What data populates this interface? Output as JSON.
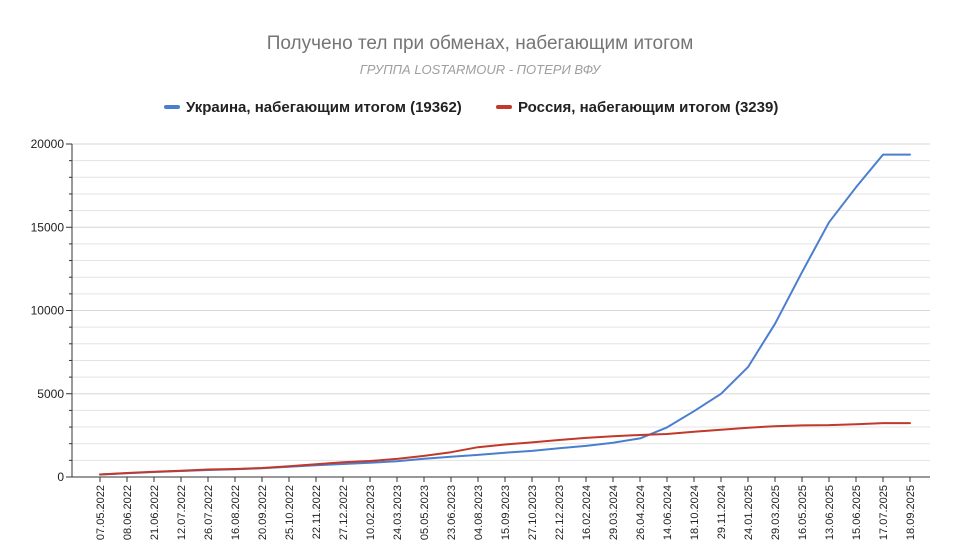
{
  "chart_data": {
    "type": "line",
    "title": "Получено тел при обменах, набегающим итогом",
    "subtitle": "ГРУППА LOSTARMOUR - ПОТЕРИ ВФУ",
    "xlabel": "",
    "ylabel": "",
    "ylim": [
      0,
      20000
    ],
    "yticks": [
      0,
      5000,
      10000,
      15000,
      20000
    ],
    "grid": true,
    "legend_position": "top-center",
    "categories": [
      "07.05.2022",
      "08.06.2022",
      "21.06.2022",
      "12.07.2022",
      "26.07.2022",
      "16.08.2022",
      "20.09.2022",
      "25.10.2022",
      "22.11.2022",
      "27.12.2022",
      "10.02.2023",
      "24.03.2023",
      "05.05.2023",
      "23.06.2023",
      "04.08.2023",
      "15.09.2023",
      "27.10.2023",
      "22.12.2023",
      "16.02.2024",
      "29.03.2024",
      "26.04.2024",
      "14.06.2024",
      "18.10.2024",
      "29.11.2024",
      "24.01.2025",
      "29.03.2025",
      "16.05.2025",
      "13.06.2025",
      "15.06.2025",
      "17.07.2025",
      "18.09.2025"
    ],
    "series": [
      {
        "name": "Украина, набегающим итогом (19362)",
        "color": "#4a7fd0",
        "values": [
          150,
          220,
          300,
          360,
          420,
          460,
          520,
          620,
          700,
          780,
          850,
          950,
          1100,
          1220,
          1330,
          1460,
          1570,
          1730,
          1870,
          2060,
          2320,
          2980,
          3950,
          5000,
          6600,
          9200,
          12300,
          15300,
          17400,
          19362,
          19362
        ]
      },
      {
        "name": "Россия, набегающим итогом (3239)",
        "color": "#c0392b",
        "values": [
          150,
          240,
          320,
          380,
          450,
          480,
          540,
          650,
          760,
          880,
          960,
          1090,
          1270,
          1490,
          1790,
          1950,
          2080,
          2220,
          2350,
          2450,
          2520,
          2580,
          2720,
          2840,
          2960,
          3050,
          3100,
          3120,
          3170,
          3239,
          3239
        ]
      }
    ]
  },
  "colors": {
    "axis": "#333333",
    "grid": "#e3e3e3"
  }
}
